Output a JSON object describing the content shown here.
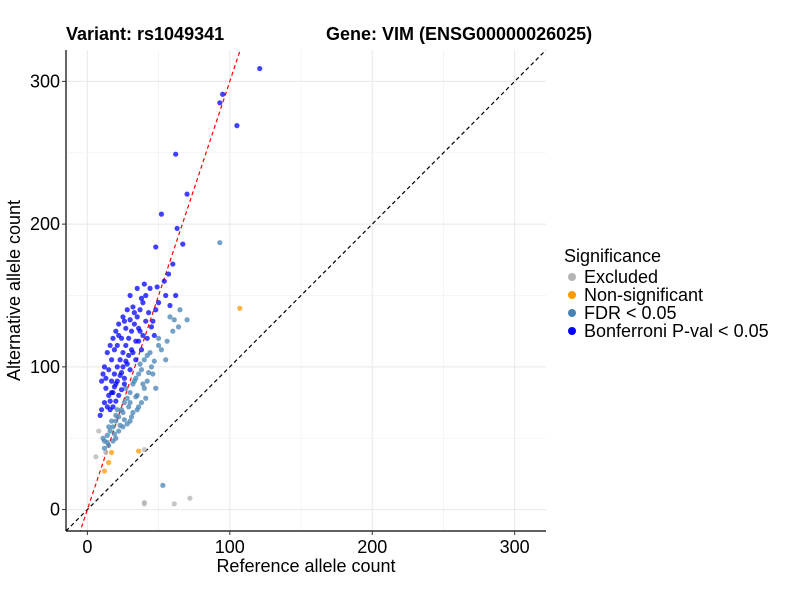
{
  "chart_data": {
    "type": "scatter",
    "title_left": "Variant: rs1049341",
    "title_right": "Gene: VIM (ENSG00000026025)",
    "xlabel": "Reference allele count",
    "ylabel": "Alternative allele count",
    "xlim": [
      -15,
      322
    ],
    "ylim": [
      -15,
      322
    ],
    "xticks": [
      0,
      100,
      200,
      300
    ],
    "yticks": [
      0,
      100,
      200,
      300
    ],
    "grid": true,
    "legend_position": "right",
    "legend_title": "Significance",
    "reference_lines": [
      {
        "name": "identity",
        "slope": 1,
        "intercept": 0,
        "color": "#000000",
        "style": "dashed"
      },
      {
        "name": "fit",
        "slope": 3.0,
        "intercept": 0,
        "color": "#ff0000",
        "style": "dashed"
      }
    ],
    "series": [
      {
        "name": "Excluded",
        "color": "#b3b3b3",
        "points": [
          [
            6,
            37
          ],
          [
            8,
            55
          ],
          [
            40,
            5
          ],
          [
            40,
            4
          ],
          [
            61,
            4
          ],
          [
            72,
            8
          ],
          [
            13,
            40
          ],
          [
            40,
            42
          ]
        ]
      },
      {
        "name": "Non-significant",
        "color": "#ff9a00",
        "points": [
          [
            107,
            141
          ],
          [
            12,
            27
          ],
          [
            36,
            41
          ],
          [
            17,
            40
          ],
          [
            15,
            33
          ]
        ]
      },
      {
        "name": "FDR < 0.05",
        "color": "#4682b4",
        "points": [
          [
            93,
            187
          ],
          [
            53,
            17
          ],
          [
            61,
            133
          ],
          [
            70,
            133
          ],
          [
            65,
            140
          ],
          [
            60,
            125
          ],
          [
            50,
            115
          ],
          [
            55,
            105
          ],
          [
            45,
            100
          ],
          [
            42,
            90
          ],
          [
            48,
            85
          ],
          [
            40,
            85
          ],
          [
            38,
            75
          ],
          [
            35,
            70
          ],
          [
            32,
            68
          ],
          [
            30,
            62
          ],
          [
            28,
            60
          ],
          [
            25,
            58
          ],
          [
            22,
            55
          ],
          [
            20,
            50
          ],
          [
            18,
            48
          ],
          [
            15,
            45
          ],
          [
            12,
            43
          ],
          [
            14,
            52
          ],
          [
            16,
            55
          ],
          [
            18,
            58
          ],
          [
            20,
            62
          ],
          [
            22,
            65
          ],
          [
            24,
            70
          ],
          [
            26,
            75
          ],
          [
            28,
            78
          ],
          [
            30,
            82
          ],
          [
            32,
            88
          ],
          [
            34,
            92
          ],
          [
            36,
            95
          ],
          [
            38,
            98
          ],
          [
            40,
            105
          ],
          [
            42,
            108
          ],
          [
            35,
            80
          ],
          [
            30,
            75
          ],
          [
            25,
            68
          ],
          [
            20,
            66
          ],
          [
            15,
            58
          ],
          [
            12,
            48
          ],
          [
            17,
            62
          ],
          [
            21,
            70
          ],
          [
            27,
            85
          ],
          [
            33,
            90
          ],
          [
            37,
            102
          ],
          [
            44,
            110
          ],
          [
            50,
            120
          ],
          [
            58,
            135
          ],
          [
            64,
            128
          ],
          [
            46,
            95
          ],
          [
            41,
            78
          ],
          [
            36,
            72
          ],
          [
            31,
            65
          ],
          [
            26,
            63
          ],
          [
            23,
            59
          ],
          [
            19,
            53
          ],
          [
            14,
            47
          ],
          [
            11,
            50
          ],
          [
            29,
            72
          ],
          [
            34,
            79
          ],
          [
            39,
            88
          ],
          [
            43,
            96
          ],
          [
            47,
            104
          ],
          [
            52,
            112
          ],
          [
            56,
            118
          ]
        ]
      },
      {
        "name": "Bonferroni P-val < 0.05",
        "color": "#0000ff",
        "points": [
          [
            121,
            309
          ],
          [
            95,
            291
          ],
          [
            93,
            285
          ],
          [
            105,
            269
          ],
          [
            62,
            249
          ],
          [
            70,
            221
          ],
          [
            52,
            207
          ],
          [
            63,
            197
          ],
          [
            67,
            186
          ],
          [
            48,
            184
          ],
          [
            60,
            172
          ],
          [
            57,
            165
          ],
          [
            54,
            160
          ],
          [
            49,
            156
          ],
          [
            40,
            158
          ],
          [
            35,
            155
          ],
          [
            30,
            150
          ],
          [
            28,
            140
          ],
          [
            25,
            135
          ],
          [
            22,
            130
          ],
          [
            20,
            125
          ],
          [
            18,
            120
          ],
          [
            16,
            115
          ],
          [
            14,
            110
          ],
          [
            12,
            100
          ],
          [
            11,
            95
          ],
          [
            10,
            90
          ],
          [
            13,
            85
          ],
          [
            15,
            80
          ],
          [
            12,
            75
          ],
          [
            10,
            70
          ],
          [
            9,
            66
          ],
          [
            17,
            90
          ],
          [
            19,
            95
          ],
          [
            21,
            100
          ],
          [
            23,
            105
          ],
          [
            25,
            110
          ],
          [
            27,
            115
          ],
          [
            29,
            120
          ],
          [
            31,
            125
          ],
          [
            33,
            130
          ],
          [
            35,
            135
          ],
          [
            37,
            140
          ],
          [
            39,
            145
          ],
          [
            41,
            150
          ],
          [
            43,
            138
          ],
          [
            45,
            128
          ],
          [
            47,
            122
          ],
          [
            36,
            118
          ],
          [
            32,
            110
          ],
          [
            28,
            102
          ],
          [
            24,
            96
          ],
          [
            20,
            88
          ],
          [
            18,
            82
          ],
          [
            16,
            76
          ],
          [
            14,
            72
          ],
          [
            26,
            92
          ],
          [
            30,
            98
          ],
          [
            34,
            105
          ],
          [
            38,
            112
          ],
          [
            42,
            120
          ],
          [
            46,
            132
          ],
          [
            50,
            145
          ],
          [
            44,
            155
          ],
          [
            38,
            148
          ],
          [
            32,
            142
          ],
          [
            26,
            132
          ],
          [
            22,
            122
          ],
          [
            19,
            112
          ],
          [
            17,
            105
          ],
          [
            15,
            98
          ],
          [
            13,
            92
          ],
          [
            21,
            115
          ],
          [
            24,
            120
          ],
          [
            27,
            127
          ],
          [
            30,
            133
          ],
          [
            33,
            138
          ],
          [
            36,
            127
          ],
          [
            39,
            122
          ],
          [
            58,
            143
          ],
          [
            62,
            150
          ],
          [
            55,
            150
          ],
          [
            48,
            140
          ],
          [
            41,
            132
          ],
          [
            37,
            125
          ],
          [
            34,
            118
          ],
          [
            31,
            112
          ],
          [
            29,
            108
          ],
          [
            27,
            104
          ],
          [
            25,
            100
          ],
          [
            23,
            94
          ],
          [
            21,
            90
          ],
          [
            19,
            86
          ],
          [
            17,
            82
          ],
          [
            16,
            70
          ],
          [
            18,
            72
          ],
          [
            20,
            76
          ],
          [
            22,
            80
          ],
          [
            24,
            84
          ],
          [
            26,
            88
          ]
        ]
      }
    ]
  }
}
